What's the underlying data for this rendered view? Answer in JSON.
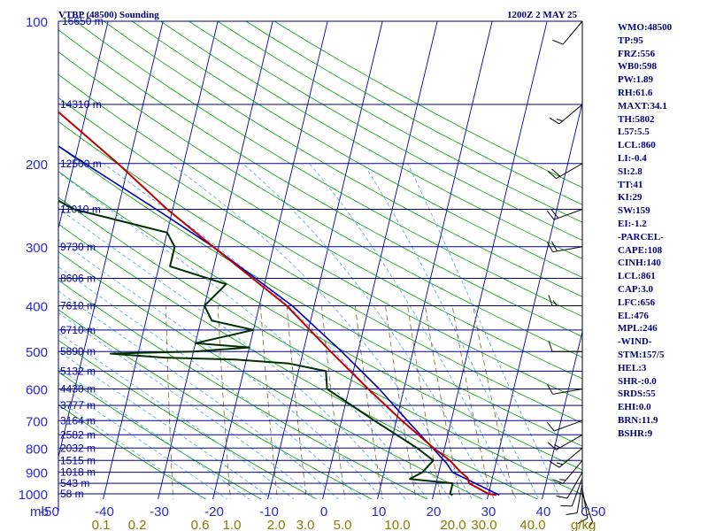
{
  "header": {
    "station": "VTBP (48500) Sounding",
    "time": "1200Z  2 MAY 25"
  },
  "indices": [
    "WMO:48500",
    "TP:95",
    "FRZ:556",
    "WB0:598",
    "PW:1.89",
    "RH:61.6",
    "MAXT:34.1",
    "TH:5802",
    "L57:5.5",
    "LCL:860",
    "LI:-0.4",
    "SI:2.8",
    "TT:41",
    "KI:29",
    "SW:159",
    "EI:-1.2",
    "-PARCEL-",
    "CAPE:108",
    "CINH:140",
    "LCL:861",
    "CAP:3.0",
    "LFC:656",
    "EL:476",
    "MPL:246",
    "-WIND-",
    "STM:157/5",
    "HEL:3",
    "SHR-:0.0",
    "SRDS:55",
    "EHI:0.0",
    "BRN:11.9",
    "BSHR:9"
  ],
  "colors": {
    "isobar": "#00008b",
    "isotherm": "#0000a0",
    "dry_adiabat": "#00a000",
    "moist_adiabat": "#4fa7e0",
    "mixing_ratio": "#7a6a2a",
    "temperature": "#c00000",
    "dewpoint": "#003000",
    "parcel": "#0000c0",
    "wind": "#000000"
  },
  "chart_data": {
    "type": "line",
    "title": "VTBP (48500) Sounding",
    "pressure_unit": "mb",
    "temperature_unit": "C",
    "mixing_ratio_unit": "g/kg",
    "pressure_axis": "log",
    "pressure_ticks": [
      "100",
      "200",
      "300",
      "400",
      "500",
      "600",
      "700",
      "800",
      "900",
      "1000"
    ],
    "height_labels": [
      {
        "p": 100,
        "text": "16650 m"
      },
      {
        "p": 150,
        "text": "14310 m"
      },
      {
        "p": 200,
        "text": "12500 m"
      },
      {
        "p": 250,
        "text": "11010 m"
      },
      {
        "p": 300,
        "text": "9730 m"
      },
      {
        "p": 350,
        "text": "8606 m"
      },
      {
        "p": 400,
        "text": "7610 m"
      },
      {
        "p": 450,
        "text": "6710 m"
      },
      {
        "p": 500,
        "text": "5890 m"
      },
      {
        "p": 550,
        "text": "5132 m"
      },
      {
        "p": 600,
        "text": "4430 m"
      },
      {
        "p": 650,
        "text": "3777 m"
      },
      {
        "p": 700,
        "text": "3164 m"
      },
      {
        "p": 750,
        "text": "2582 m"
      },
      {
        "p": 800,
        "text": "2032 m"
      },
      {
        "p": 850,
        "text": "1515 m"
      },
      {
        "p": 900,
        "text": "1018 m"
      },
      {
        "p": 950,
        "text": "543 m"
      },
      {
        "p": 1000,
        "text": "58 m"
      }
    ],
    "temperature_ticks": [
      "-50",
      "-40",
      "-30",
      "-20",
      "-10",
      "0",
      "10",
      "20",
      "30",
      "40",
      "50"
    ],
    "mixing_ratio_ticks": [
      "0.1",
      "0.2",
      "0.6",
      "1.0",
      "2.0",
      "3.0",
      "5.0",
      "10.0",
      "20.0",
      "30.0",
      "40.0"
    ],
    "temperature_profile": [
      {
        "p": 1006,
        "t": 31.5
      },
      {
        "p": 1000,
        "t": 30
      },
      {
        "p": 950,
        "t": 26
      },
      {
        "p": 925,
        "t": 25.5
      },
      {
        "p": 900,
        "t": 24
      },
      {
        "p": 850,
        "t": 21.5
      },
      {
        "p": 800,
        "t": 18
      },
      {
        "p": 700,
        "t": 11
      },
      {
        "p": 600,
        "t": 3.5
      },
      {
        "p": 500,
        "t": -5
      },
      {
        "p": 400,
        "t": -15
      },
      {
        "p": 300,
        "t": -31
      },
      {
        "p": 250,
        "t": -41
      },
      {
        "p": 200,
        "t": -52
      },
      {
        "p": 150,
        "t": -67
      },
      {
        "p": 130,
        "t": -74
      },
      {
        "p": 115,
        "t": -74
      },
      {
        "p": 100,
        "t": -77
      }
    ],
    "dewpoint_profile": [
      {
        "p": 1006,
        "t": 23.5
      },
      {
        "p": 1000,
        "t": 23
      },
      {
        "p": 950,
        "t": 23
      },
      {
        "p": 930,
        "t": 15
      },
      {
        "p": 900,
        "t": 17
      },
      {
        "p": 850,
        "t": 18.5
      },
      {
        "p": 800,
        "t": 15
      },
      {
        "p": 700,
        "t": 6
      },
      {
        "p": 600,
        "t": -4
      },
      {
        "p": 550,
        "t": -5
      },
      {
        "p": 530,
        "t": -12
      },
      {
        "p": 520,
        "t": -22
      },
      {
        "p": 515,
        "t": -35
      },
      {
        "p": 505,
        "t": -45
      },
      {
        "p": 500,
        "t": -30
      },
      {
        "p": 490,
        "t": -20
      },
      {
        "p": 480,
        "t": -30
      },
      {
        "p": 450,
        "t": -20
      },
      {
        "p": 430,
        "t": -28
      },
      {
        "p": 400,
        "t": -30
      },
      {
        "p": 360,
        "t": -27
      },
      {
        "p": 330,
        "t": -38
      },
      {
        "p": 300,
        "t": -38
      },
      {
        "p": 280,
        "t": -40
      },
      {
        "p": 250,
        "t": -58
      },
      {
        "p": 200,
        "t": -75
      },
      {
        "p": 150,
        "t": -80
      },
      {
        "p": 120,
        "t": -85
      },
      {
        "p": 100,
        "t": -85
      }
    ],
    "parcel_profile": [
      {
        "p": 1006,
        "t": 32
      },
      {
        "p": 900,
        "t": 22.5
      },
      {
        "p": 861,
        "t": 21
      },
      {
        "p": 700,
        "t": 12
      },
      {
        "p": 600,
        "t": 5.5
      },
      {
        "p": 500,
        "t": -3
      },
      {
        "p": 400,
        "t": -14
      },
      {
        "p": 300,
        "t": -31
      },
      {
        "p": 250,
        "t": -43
      },
      {
        "p": 200,
        "t": -58
      },
      {
        "p": 150,
        "t": -77
      },
      {
        "p": 120,
        "t": -88
      },
      {
        "p": 100,
        "t": -92
      }
    ],
    "wind_barbs": [
      {
        "p": 1000,
        "dir": 160,
        "spd": 5
      },
      {
        "p": 975,
        "dir": 170,
        "spd": 10
      },
      {
        "p": 950,
        "dir": 190,
        "spd": 10
      },
      {
        "p": 925,
        "dir": 200,
        "spd": 10
      },
      {
        "p": 900,
        "dir": 210,
        "spd": 10
      },
      {
        "p": 850,
        "dir": 220,
        "spd": 15
      },
      {
        "p": 800,
        "dir": 230,
        "spd": 15
      },
      {
        "p": 750,
        "dir": 240,
        "spd": 15
      },
      {
        "p": 700,
        "dir": 250,
        "spd": 10
      },
      {
        "p": 600,
        "dir": 260,
        "spd": 10
      },
      {
        "p": 500,
        "dir": 270,
        "spd": 10
      },
      {
        "p": 400,
        "dir": 270,
        "spd": 15
      },
      {
        "p": 300,
        "dir": 260,
        "spd": 20
      },
      {
        "p": 250,
        "dir": 250,
        "spd": 20
      },
      {
        "p": 200,
        "dir": 240,
        "spd": 20
      },
      {
        "p": 150,
        "dir": 230,
        "spd": 15
      },
      {
        "p": 100,
        "dir": 220,
        "spd": 10
      }
    ]
  }
}
